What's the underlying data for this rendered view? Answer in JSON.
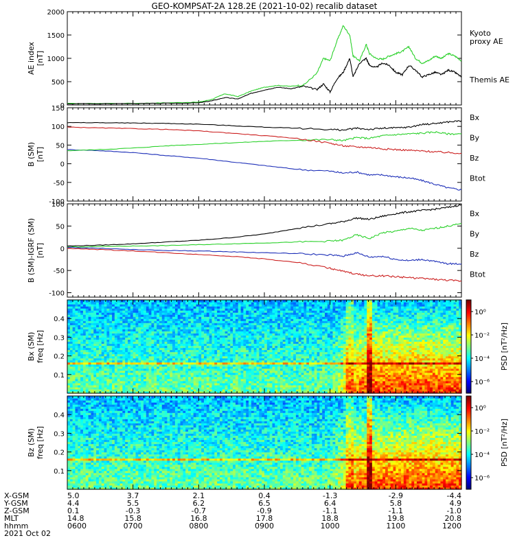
{
  "title": "GEO-KOMPSAT-2A 128.2E (2021-10-02) recalib dataset",
  "colors": {
    "black": "#000000",
    "green": "#2bd12b",
    "red": "#cc1f1f",
    "blue": "#1d2fb8"
  },
  "chart_data": [
    {
      "type": "line",
      "ylabel": "AE index",
      "yunit": "[nT]",
      "ylim": [
        0,
        2000
      ],
      "yticks": [
        "0",
        "500",
        "1000",
        "1500",
        "2000"
      ],
      "xlim": [
        6,
        12
      ],
      "series": [
        {
          "name": "Kyoto proxy AE",
          "label_lines": [
            "Kyoto",
            "proxy AE"
          ],
          "color": "#2bd12b",
          "x": [
            6.0,
            7.0,
            7.5,
            8.0,
            8.2,
            8.4,
            8.6,
            8.8,
            9.0,
            9.2,
            9.4,
            9.6,
            9.8,
            9.9,
            10.0,
            10.1,
            10.2,
            10.3,
            10.35,
            10.45,
            10.55,
            10.6,
            10.7,
            10.8,
            10.9,
            11.0,
            11.1,
            11.2,
            11.3,
            11.4,
            11.5,
            11.6,
            11.7,
            11.8,
            11.9,
            12.0
          ],
          "y": [
            30,
            35,
            45,
            60,
            120,
            240,
            180,
            300,
            380,
            420,
            400,
            430,
            680,
            1000,
            950,
            1350,
            1700,
            1500,
            1050,
            950,
            1300,
            1100,
            1000,
            980,
            1050,
            1100,
            1150,
            1250,
            1000,
            900,
            950,
            1050,
            1000,
            1100,
            1050,
            950
          ]
        },
        {
          "name": "Themis AE",
          "label_lines": [
            "Themis AE"
          ],
          "color": "#000000",
          "x": [
            6.0,
            7.0,
            7.5,
            8.0,
            8.2,
            8.4,
            8.6,
            8.8,
            9.0,
            9.2,
            9.4,
            9.6,
            9.8,
            9.9,
            10.0,
            10.1,
            10.2,
            10.3,
            10.35,
            10.45,
            10.55,
            10.6,
            10.7,
            10.8,
            10.9,
            11.0,
            11.1,
            11.2,
            11.3,
            11.4,
            11.5,
            11.6,
            11.7,
            11.8,
            11.9,
            12.0
          ],
          "y": [
            25,
            30,
            35,
            45,
            90,
            160,
            130,
            250,
            320,
            380,
            350,
            400,
            330,
            450,
            280,
            550,
            700,
            1000,
            600,
            900,
            1000,
            850,
            800,
            900,
            850,
            700,
            650,
            850,
            750,
            600,
            650,
            700,
            650,
            750,
            700,
            600
          ]
        }
      ]
    },
    {
      "type": "line",
      "ylabel": "B (SM)",
      "yunit": "[nT]",
      "ylim": [
        -100,
        150
      ],
      "yticks": [
        "-100",
        "-50",
        "0",
        "50",
        "100",
        "150"
      ],
      "xlim": [
        6,
        12
      ],
      "series": [
        {
          "name": "Bx",
          "label_lines": [
            "Bx"
          ],
          "color": "#1d2fb8",
          "x": [
            6.0,
            6.5,
            7.0,
            7.5,
            8.0,
            8.5,
            9.0,
            9.5,
            10.0,
            10.2,
            10.4,
            10.6,
            10.8,
            11.0,
            11.2,
            11.4,
            11.6,
            11.8,
            12.0
          ],
          "y": [
            38,
            35,
            30,
            22,
            15,
            5,
            -5,
            -15,
            -20,
            -25,
            -22,
            -30,
            -30,
            -35,
            -38,
            -45,
            -55,
            -65,
            -70
          ]
        },
        {
          "name": "By",
          "label_lines": [
            "By"
          ],
          "color": "#2bd12b",
          "x": [
            6.0,
            6.5,
            7.0,
            7.5,
            8.0,
            8.5,
            9.0,
            9.5,
            10.0,
            10.2,
            10.4,
            10.6,
            10.8,
            11.0,
            11.2,
            11.4,
            11.6,
            11.8,
            12.0
          ],
          "y": [
            35,
            38,
            42,
            48,
            52,
            56,
            60,
            63,
            65,
            62,
            70,
            68,
            75,
            78,
            80,
            82,
            85,
            80,
            80
          ]
        },
        {
          "name": "Bz",
          "label_lines": [
            "Bz"
          ],
          "color": "#cc1f1f",
          "x": [
            6.0,
            6.5,
            7.0,
            7.5,
            8.0,
            8.5,
            9.0,
            9.5,
            10.0,
            10.2,
            10.4,
            10.6,
            10.8,
            11.0,
            11.2,
            11.4,
            11.6,
            11.8,
            12.0
          ],
          "y": [
            98,
            96,
            94,
            92,
            88,
            82,
            75,
            68,
            55,
            48,
            45,
            44,
            40,
            38,
            36,
            34,
            32,
            30,
            28
          ]
        },
        {
          "name": "Btot",
          "label_lines": [
            "Btot"
          ],
          "color": "#000000",
          "x": [
            6.0,
            6.5,
            7.0,
            7.5,
            8.0,
            8.5,
            9.0,
            9.5,
            10.0,
            10.2,
            10.4,
            10.6,
            10.8,
            11.0,
            11.2,
            11.4,
            11.6,
            11.8,
            12.0
          ],
          "y": [
            110,
            110,
            109,
            108,
            106,
            102,
            98,
            95,
            92,
            90,
            95,
            92,
            95,
            96,
            98,
            105,
            108,
            112,
            115
          ]
        }
      ]
    },
    {
      "type": "line",
      "ylabel": "B (SM)-IGRF (SM)",
      "yunit": "[nT]",
      "ylim": [
        -110,
        100
      ],
      "yticks": [
        "-100",
        "-50",
        "0",
        "50",
        "100"
      ],
      "xlim": [
        6,
        12
      ],
      "series": [
        {
          "name": "Bx",
          "label_lines": [
            "Bx"
          ],
          "color": "#000000",
          "x": [
            6.0,
            6.5,
            7.0,
            7.5,
            8.0,
            8.5,
            9.0,
            9.5,
            10.0,
            10.2,
            10.4,
            10.6,
            10.8,
            11.0,
            11.2,
            11.4,
            11.6,
            11.8,
            12.0
          ],
          "y": [
            5,
            7,
            10,
            14,
            18,
            24,
            32,
            45,
            55,
            60,
            68,
            65,
            72,
            78,
            82,
            85,
            88,
            92,
            98
          ]
        },
        {
          "name": "By",
          "label_lines": [
            "By"
          ],
          "color": "#2bd12b",
          "x": [
            6.0,
            6.5,
            7.0,
            7.5,
            8.0,
            8.5,
            9.0,
            9.5,
            10.0,
            10.2,
            10.4,
            10.6,
            10.8,
            11.0,
            11.2,
            11.4,
            11.6,
            11.8,
            12.0
          ],
          "y": [
            3,
            4,
            5,
            6,
            8,
            10,
            12,
            14,
            16,
            18,
            30,
            22,
            35,
            38,
            45,
            40,
            45,
            50,
            55
          ]
        },
        {
          "name": "Bz",
          "label_lines": [
            "Bz"
          ],
          "color": "#1d2fb8",
          "x": [
            6.0,
            6.5,
            7.0,
            7.5,
            8.0,
            8.5,
            9.0,
            9.5,
            10.0,
            10.2,
            10.4,
            10.6,
            10.8,
            11.0,
            11.2,
            11.4,
            11.6,
            11.8,
            12.0
          ],
          "y": [
            2,
            0,
            -3,
            -5,
            -6,
            -8,
            -10,
            -12,
            -15,
            -18,
            -10,
            -20,
            -18,
            -25,
            -28,
            -25,
            -30,
            -35,
            -35
          ]
        },
        {
          "name": "Btot",
          "label_lines": [
            "Btot"
          ],
          "color": "#cc1f1f",
          "x": [
            6.0,
            6.5,
            7.0,
            7.5,
            8.0,
            8.5,
            9.0,
            9.5,
            10.0,
            10.2,
            10.4,
            10.6,
            10.8,
            11.0,
            11.2,
            11.4,
            11.6,
            11.8,
            12.0
          ],
          "y": [
            0,
            -3,
            -6,
            -10,
            -14,
            -18,
            -24,
            -32,
            -45,
            -52,
            -58,
            -62,
            -62,
            -64,
            -66,
            -68,
            -70,
            -72,
            -74
          ]
        }
      ]
    },
    {
      "type": "heatmap",
      "ylabel": "Bx (SM)",
      "yunit": "freq [Hz]",
      "ylim": [
        0,
        0.5
      ],
      "yticks": [
        "0.1",
        "0.2",
        "0.3",
        "0.4"
      ],
      "xlim": [
        6,
        12
      ],
      "colorbar_label": "PSD [nT²/Hz]",
      "colorbar_ticks": [
        "10⁰",
        "10⁻²",
        "10⁻⁴",
        "10⁻⁶"
      ],
      "colorbar_log_values": [
        0,
        -2,
        -4,
        -6
      ],
      "colorbar_range": [
        -7,
        1
      ]
    },
    {
      "type": "heatmap",
      "ylabel": "Bz (SM)",
      "yunit": "freq [Hz]",
      "ylim": [
        0,
        0.5
      ],
      "yticks": [
        "0.1",
        "0.2",
        "0.3",
        "0.4"
      ],
      "xlim": [
        6,
        12
      ],
      "colorbar_label": "PSD [nT²/Hz]",
      "colorbar_ticks": [
        "10⁰",
        "10⁻²",
        "10⁻⁴",
        "10⁻⁶"
      ],
      "colorbar_log_values": [
        0,
        -2,
        -4,
        -6
      ],
      "colorbar_range": [
        -7,
        1
      ]
    }
  ],
  "orbit_table": {
    "row_labels": [
      "X-GSM",
      "Y-GSM",
      "Z-GSM",
      "MLT",
      "hhmm"
    ],
    "columns": [
      [
        "5.0",
        "4.4",
        "0.1",
        "14.8",
        "0600"
      ],
      [
        "3.7",
        "5.5",
        "-0.3",
        "15.8",
        "0700"
      ],
      [
        "2.1",
        "6.2",
        "-0.7",
        "16.8",
        "0800"
      ],
      [
        "0.4",
        "6.5",
        "-0.9",
        "17.8",
        "0900"
      ],
      [
        "-1.3",
        "6.4",
        "-1.1",
        "18.8",
        "1000"
      ],
      [
        "-2.9",
        "5.8",
        "-1.1",
        "19.8",
        "1100"
      ],
      [
        "-4.4",
        "4.9",
        "-1.0",
        "20.8",
        "1200"
      ]
    ],
    "date": "2021 Oct 02"
  }
}
